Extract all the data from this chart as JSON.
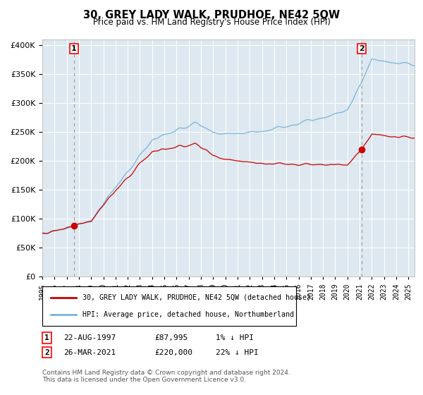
{
  "title": "30, GREY LADY WALK, PRUDHOE, NE42 5QW",
  "subtitle": "Price paid vs. HM Land Registry's House Price Index (HPI)",
  "sale1_price": 87995,
  "sale2_price": 220000,
  "legend1": "30, GREY LADY WALK, PRUDHOE, NE42 5QW (detached house)",
  "legend2": "HPI: Average price, detached house, Northumberland",
  "hpi_color": "#7ab4d8",
  "price_color": "#cc0000",
  "marker_color": "#cc0000",
  "bg_color": "#dde8f0",
  "grid_color": "#ffffff",
  "dashed_line_color": "#999999",
  "ylim": [
    0,
    410000
  ],
  "yticks": [
    0,
    50000,
    100000,
    150000,
    200000,
    250000,
    300000,
    350000,
    400000
  ],
  "start_year": 1995.0,
  "end_year": 2025.5,
  "footer": "Contains HM Land Registry data © Crown copyright and database right 2024.\nThis data is licensed under the Open Government Licence v3.0."
}
